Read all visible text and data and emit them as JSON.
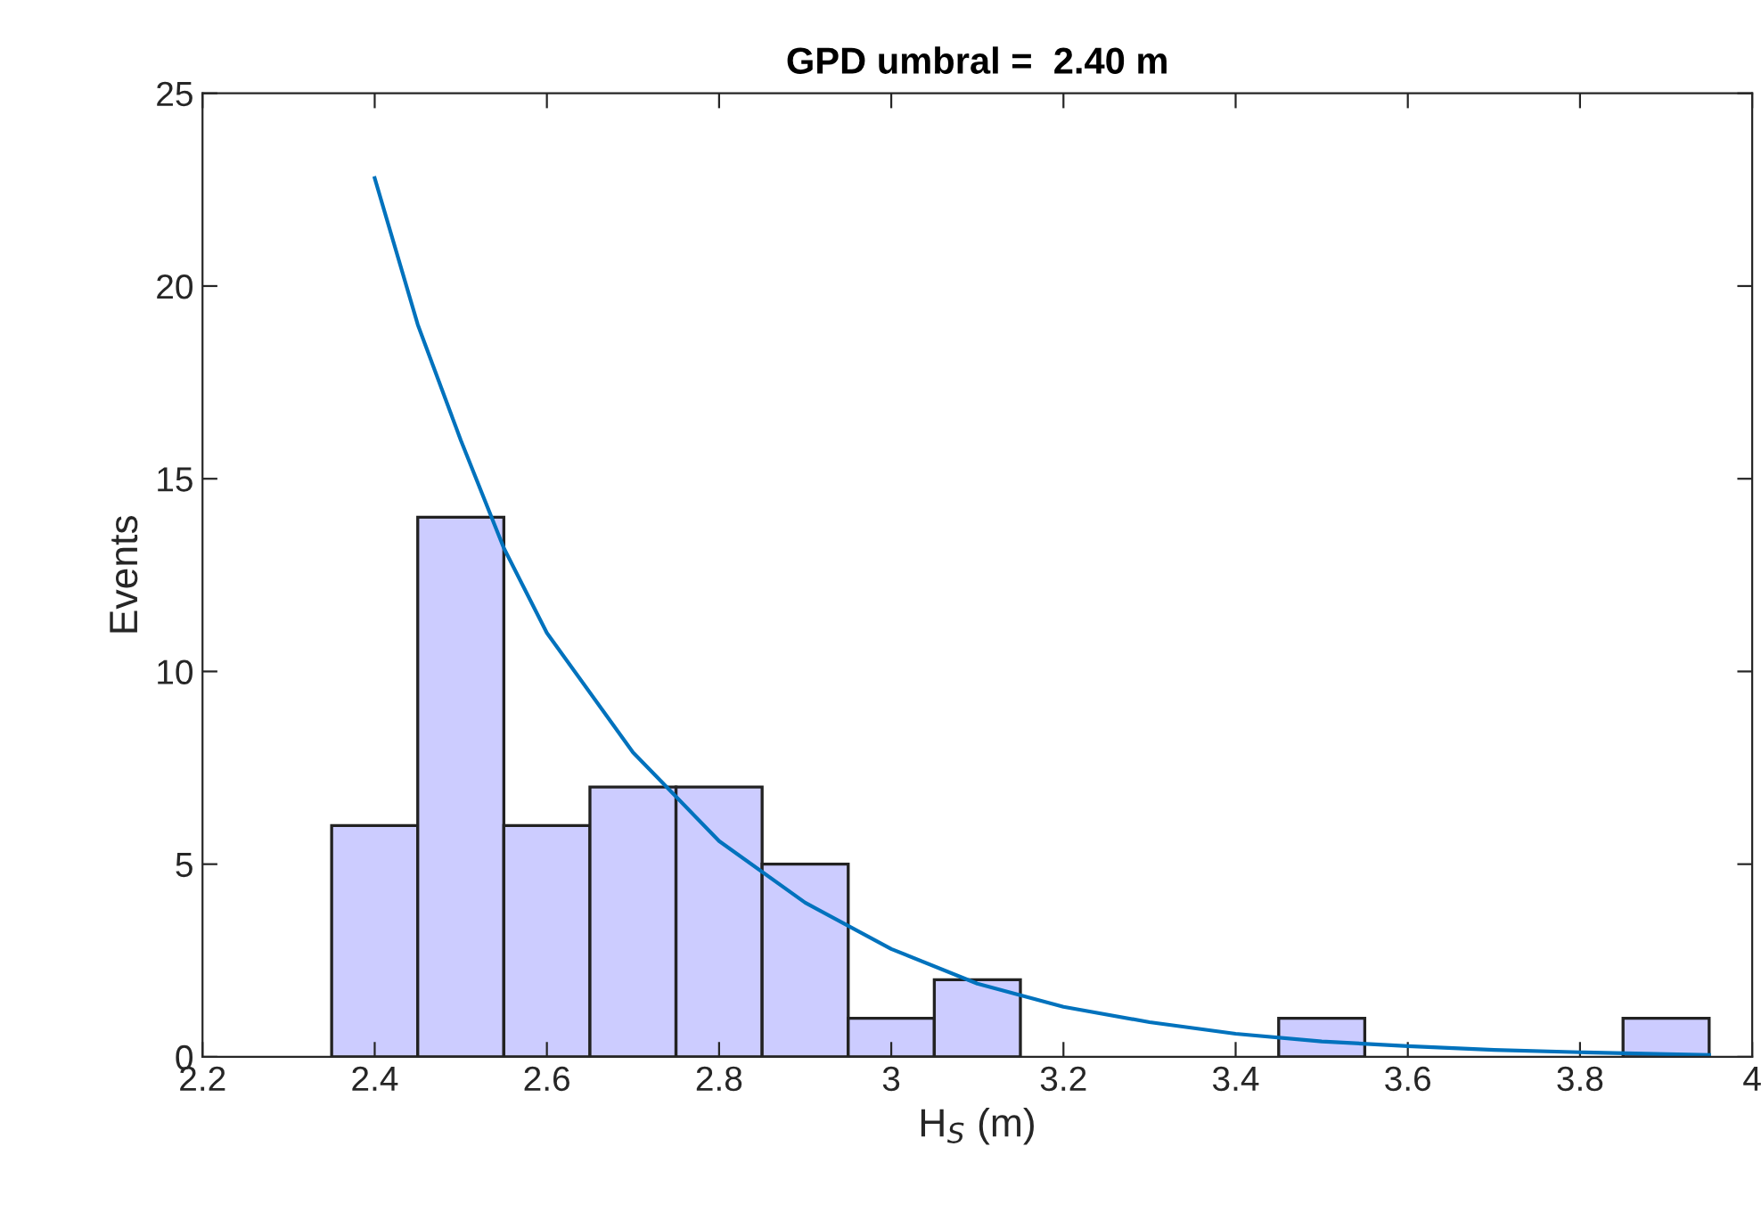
{
  "chart_data": {
    "type": "histogram",
    "title": "GPD umbral =  2.40 m",
    "xlabel": "H$_{S}$ (m)",
    "ylabel": "Events",
    "bins": [
      2.35,
      2.45,
      2.55,
      2.65,
      2.75,
      2.85,
      2.95,
      3.05,
      3.15,
      3.25,
      3.35,
      3.45,
      3.55,
      3.65,
      3.75,
      3.85,
      3.95
    ],
    "values": [
      6,
      14,
      6,
      7,
      7,
      5,
      1,
      2,
      0,
      0,
      0,
      1,
      0,
      0,
      0,
      1
    ],
    "color": "#ccccff",
    "series": [
      {
        "type": "line",
        "color": "#0072bd",
        "x": [
          2.4,
          2.45,
          2.5,
          2.55,
          2.6,
          2.7,
          2.8,
          2.9,
          3.0,
          3.1,
          3.2,
          3.3,
          3.4,
          3.5,
          3.6,
          3.7,
          3.8,
          3.9,
          3.95
        ],
        "values": [
          22.8,
          19,
          16,
          13.2,
          11,
          7.9,
          5.6,
          4,
          2.8,
          1.9,
          1.3,
          0.9,
          0.6,
          0.4,
          0.28,
          0.18,
          0.12,
          0.07,
          0.05
        ]
      }
    ],
    "xlim": [
      2.2,
      4
    ],
    "xticks": [
      2.2,
      2.4,
      2.6,
      2.8,
      3,
      3.2,
      3.4,
      3.6,
      3.8,
      4
    ],
    "ylim": [
      0,
      25
    ],
    "yticks": [
      0,
      5,
      10,
      15,
      20,
      25
    ],
    "grid": false,
    "legend": false
  }
}
